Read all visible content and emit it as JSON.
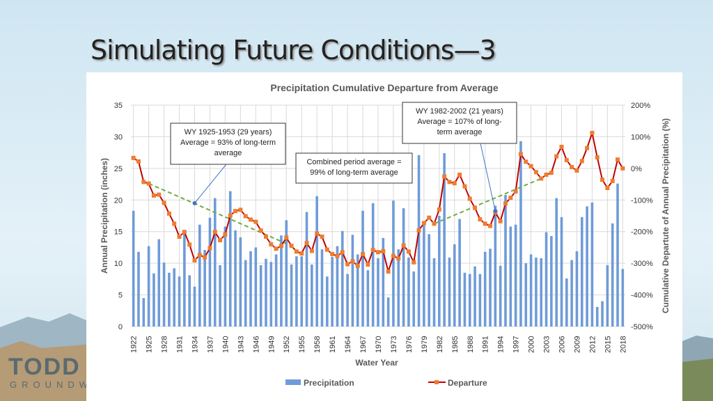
{
  "slide": {
    "title": "Simulating Future Conditions—3",
    "logo_text": "TODD",
    "logo_sub": "GROUNDWATER"
  },
  "chart_data": {
    "type": "bar+line",
    "title": "Precipitation Cumulative Departure from Average",
    "xlabel": "Water Year",
    "ylabel": "Annual Precipitation (inches)",
    "y2label": "Cumulative Departute of Annual Precipitation (%)",
    "ylim": [
      0,
      35
    ],
    "yticks": [
      0,
      5,
      10,
      15,
      20,
      25,
      30,
      35
    ],
    "y2lim": [
      -500,
      200
    ],
    "y2ticks": [
      "-500%",
      "-400%",
      "-300%",
      "-200%",
      "-100%",
      "0%",
      "100%",
      "200%"
    ],
    "grid": true,
    "legend": "bottom",
    "x_start": 1922,
    "x_end": 2018,
    "series": [
      {
        "name": "Precipitation",
        "type": "bar",
        "color": "#6f9bd8",
        "values": [
          18.3,
          11.8,
          4.5,
          12.7,
          8.4,
          13.8,
          10.1,
          8.5,
          9.2,
          7.9,
          15.0,
          8.1,
          6.3,
          16.1,
          12.1,
          17.2,
          20.3,
          9.7,
          15.8,
          21.4,
          15.2,
          14.1,
          10.5,
          11.9,
          12.5,
          9.7,
          10.7,
          10.2,
          11.4,
          14.4,
          16.8,
          9.8,
          11.1,
          11.1,
          18.1,
          9.8,
          20.6,
          12.2,
          7.9,
          11.0,
          12.7,
          15.1,
          8.3,
          14.5,
          11.4,
          18.3,
          8.9,
          19.5,
          10.8,
          14.0,
          4.6,
          19.9,
          12.2,
          18.7,
          10.9,
          8.7,
          27.1,
          16.2,
          14.6,
          10.8,
          17.5,
          27.4,
          10.9,
          13.0,
          17.0,
          8.5,
          8.3,
          9.5,
          8.3,
          11.8,
          12.3,
          19.1,
          9.6,
          20.8,
          15.8,
          16.1,
          29.3,
          10.0,
          11.4,
          10.9,
          10.8,
          14.9,
          14.3,
          20.3,
          17.3,
          7.6,
          10.5,
          11.9,
          17.3,
          19.0,
          19.6,
          3.1,
          4.0,
          9.7,
          16.3,
          22.6,
          9.1
        ]
      },
      {
        "name": "Departure",
        "type": "line",
        "axis": "right",
        "color": "#c00000",
        "marker_color": "#ed7d31",
        "values": [
          33,
          22,
          -43,
          -48,
          -86,
          -83,
          -109,
          -143,
          -175,
          -216,
          -201,
          -241,
          -291,
          -274,
          -281,
          -252,
          -201,
          -227,
          -209,
          -149,
          -135,
          -131,
          -151,
          -162,
          -169,
          -196,
          -216,
          -240,
          -254,
          -245,
          -219,
          -245,
          -263,
          -269,
          -236,
          -261,
          -206,
          -216,
          -257,
          -271,
          -277,
          -265,
          -303,
          -294,
          -308,
          -271,
          -304,
          -258,
          -265,
          -262,
          -326,
          -277,
          -285,
          -244,
          -263,
          -297,
          -196,
          -173,
          -156,
          -175,
          -130,
          -26,
          -43,
          -47,
          -20,
          -57,
          -96,
          -125,
          -161,
          -175,
          -182,
          -139,
          -167,
          -111,
          -93,
          -73,
          45,
          21,
          7,
          -12,
          -32,
          -20,
          -14,
          38,
          68,
          26,
          4,
          -7,
          23,
          64,
          112,
          35,
          -36,
          -62,
          -40,
          28,
          0
        ]
      }
    ],
    "trend_lines": [
      {
        "from": [
          1925,
          -48
        ],
        "to": [
          1953,
          -245
        ],
        "color": "#70ad47"
      },
      {
        "from": [
          1981,
          -175
        ],
        "to": [
          2002,
          -32
        ],
        "color": "#70ad47"
      }
    ],
    "annotations": [
      {
        "lines": [
          "WY 1925-1953 (29 years)",
          "Average = 93% of long-term",
          "average"
        ],
        "arrow_to": [
          1934,
          -110
        ]
      },
      {
        "lines": [
          "Combined period average =",
          "99% of long-term average"
        ]
      },
      {
        "lines": [
          "WY 1982-2002 (21 years)",
          "Average = 107% of long-",
          "term average"
        ],
        "arrow_to": [
          1993,
          -135
        ]
      }
    ]
  }
}
